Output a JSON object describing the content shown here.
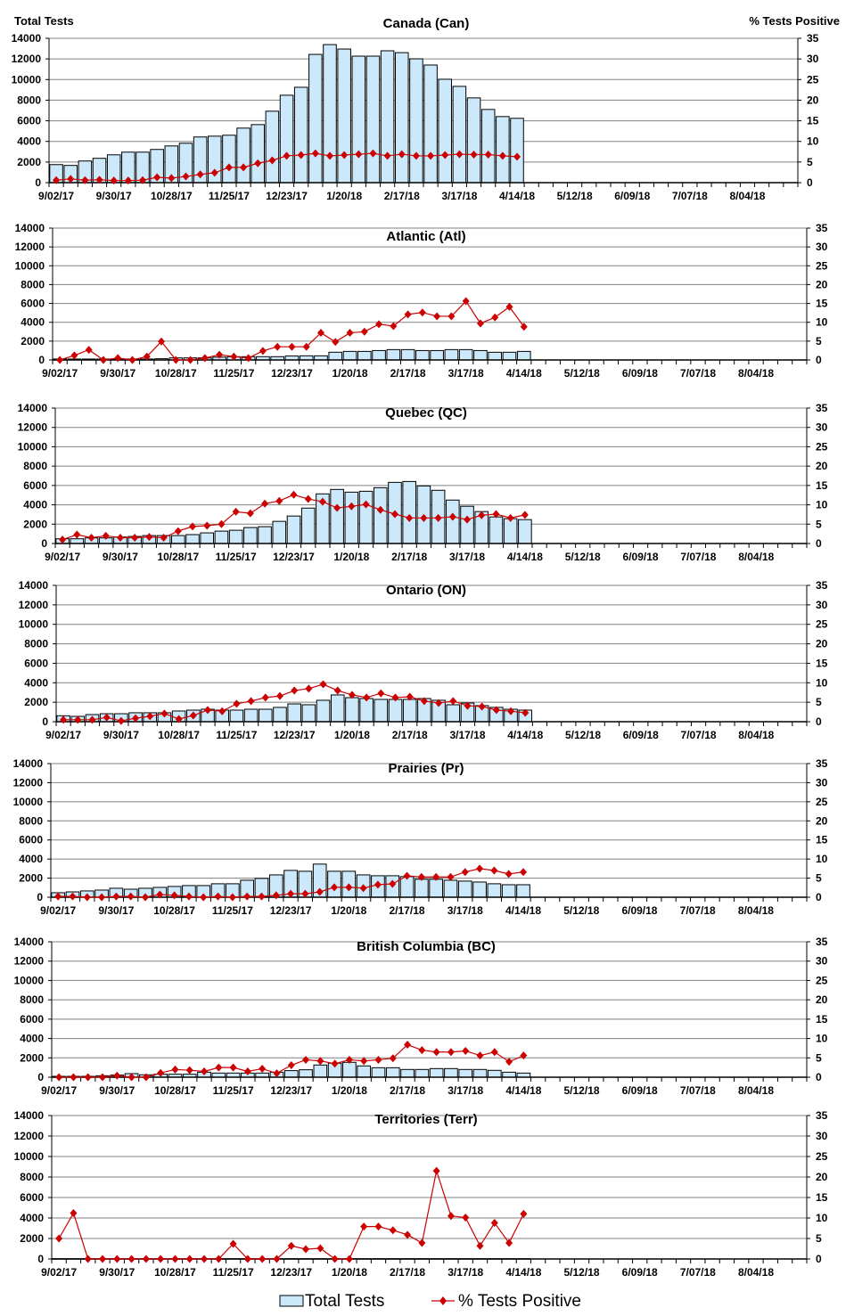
{
  "axis_titles": {
    "left": "Total Tests",
    "right": "% Tests Positive"
  },
  "legend": {
    "bars": "Total Tests",
    "line": "% Tests Positive"
  },
  "colors": {
    "bar_fill": "#cce9fb",
    "bar_stroke": "#000000",
    "line": "#cc0000",
    "grid": "#808080"
  },
  "chart_data": [
    {
      "type": "bar+line",
      "title": "Canada (Can)",
      "x_tick_labels": [
        "9/02/17",
        "9/30/17",
        "10/28/17",
        "11/25/17",
        "12/23/17",
        "1/20/18",
        "2/17/18",
        "3/17/18",
        "4/14/18",
        "5/12/18",
        "6/09/18",
        "7/07/18",
        "8/04/18"
      ],
      "y_left_ticks": [
        0,
        2000,
        4000,
        6000,
        8000,
        10000,
        12000,
        14000
      ],
      "y_right_ticks": [
        0,
        5,
        10,
        15,
        20,
        25,
        30,
        35
      ],
      "ylim_left": [
        0,
        14000
      ],
      "ylim_right": [
        0,
        35
      ],
      "grid": true,
      "series": [
        {
          "name": "Total Tests",
          "values": [
            1750,
            1670,
            2100,
            2360,
            2700,
            2960,
            2960,
            3220,
            3560,
            3820,
            4430,
            4510,
            4600,
            5290,
            5630,
            6930,
            8480,
            9250,
            12440,
            13390,
            12960,
            12270,
            12270,
            12790,
            12610,
            12010,
            11410,
            10030,
            9340,
            8220,
            7100,
            6410,
            6240
          ]
        },
        {
          "name": "% Tests Positive",
          "values": [
            0.6,
            0.9,
            0.6,
            0.7,
            0.5,
            0.5,
            0.6,
            1.3,
            1.1,
            1.5,
            2.0,
            2.4,
            3.7,
            3.7,
            4.7,
            5.4,
            6.5,
            6.7,
            7.1,
            6.5,
            6.7,
            6.9,
            7.1,
            6.5,
            6.9,
            6.5,
            6.5,
            6.7,
            6.9,
            6.8,
            6.8,
            6.5,
            6.3
          ]
        }
      ]
    },
    {
      "type": "bar+line",
      "title": "Atlantic (Atl)",
      "x_tick_labels": [
        "9/02/17",
        "9/30/17",
        "10/28/17",
        "11/25/17",
        "12/23/17",
        "1/20/18",
        "2/17/18",
        "3/17/18",
        "4/14/18",
        "5/12/18",
        "6/09/18",
        "7/07/18",
        "8/04/18"
      ],
      "y_left_ticks": [
        0,
        2000,
        4000,
        6000,
        8000,
        10000,
        12000,
        14000
      ],
      "y_right_ticks": [
        0,
        5,
        10,
        15,
        20,
        25,
        30,
        35
      ],
      "ylim_left": [
        0,
        14000
      ],
      "ylim_right": [
        0,
        35
      ],
      "grid": true,
      "series": [
        {
          "name": "Total Tests",
          "values": [
            100,
            100,
            100,
            100,
            100,
            100,
            100,
            130,
            220,
            220,
            220,
            300,
            350,
            350,
            350,
            350,
            420,
            440,
            440,
            820,
            910,
            910,
            1000,
            1100,
            1100,
            1000,
            1000,
            1100,
            1100,
            1000,
            820,
            820,
            910
          ]
        },
        {
          "name": "% Tests Positive",
          "values": [
            0,
            1.2,
            2.7,
            0,
            0.5,
            0,
            0.9,
            4.9,
            0,
            0,
            0.5,
            1.4,
            0.9,
            0.5,
            2.4,
            3.5,
            3.5,
            3.5,
            7.2,
            4.8,
            7.2,
            7.5,
            9.5,
            9.0,
            12.1,
            12.6,
            11.6,
            11.6,
            15.6,
            9.7,
            11.3,
            14.1,
            8.8
          ]
        }
      ]
    },
    {
      "type": "bar+line",
      "title": "Quebec (QC)",
      "x_tick_labels": [
        "9/02/17",
        "9/30/17",
        "10/28/17",
        "11/25/17",
        "12/23/17",
        "1/20/18",
        "2/17/18",
        "3/17/18",
        "4/14/18",
        "5/12/18",
        "6/09/18",
        "7/07/18",
        "8/04/18"
      ],
      "y_left_ticks": [
        0,
        2000,
        4000,
        6000,
        8000,
        10000,
        12000,
        14000
      ],
      "y_right_ticks": [
        0,
        5,
        10,
        15,
        20,
        25,
        30,
        35
      ],
      "ylim_left": [
        0,
        14000
      ],
      "ylim_right": [
        0,
        35
      ],
      "grid": true,
      "series": [
        {
          "name": "Total Tests",
          "values": [
            490,
            490,
            580,
            580,
            670,
            730,
            820,
            820,
            820,
            920,
            1100,
            1280,
            1370,
            1650,
            1740,
            2290,
            2840,
            3660,
            5130,
            5590,
            5310,
            5400,
            5770,
            6320,
            6410,
            5950,
            5500,
            4490,
            3850,
            3300,
            2750,
            2570,
            2470
          ]
        },
        {
          "name": "% Tests Positive",
          "values": [
            1.0,
            2.3,
            1.5,
            2.0,
            1.5,
            1.5,
            1.7,
            1.5,
            3.2,
            4.4,
            4.6,
            5.0,
            8.2,
            7.8,
            10.3,
            11.0,
            12.6,
            11.5,
            10.8,
            9.2,
            9.6,
            10.1,
            8.7,
            7.6,
            6.6,
            6.6,
            6.6,
            6.9,
            6.2,
            7.3,
            7.6,
            6.6,
            7.4
          ]
        }
      ]
    },
    {
      "type": "bar+line",
      "title": "Ontario (ON)",
      "x_tick_labels": [
        "9/02/17",
        "9/30/17",
        "10/28/17",
        "11/25/17",
        "12/23/17",
        "1/20/18",
        "2/17/18",
        "3/17/18",
        "4/14/18",
        "5/12/18",
        "6/09/18",
        "7/07/18",
        "8/04/18"
      ],
      "y_left_ticks": [
        0,
        2000,
        4000,
        6000,
        8000,
        10000,
        12000,
        14000
      ],
      "y_right_ticks": [
        0,
        5,
        10,
        15,
        20,
        25,
        30,
        35
      ],
      "ylim_left": [
        0,
        14000
      ],
      "ylim_right": [
        0,
        35
      ],
      "grid": true,
      "series": [
        {
          "name": "Total Tests",
          "values": [
            610,
            550,
            730,
            820,
            820,
            920,
            920,
            920,
            1100,
            1190,
            1280,
            1190,
            1190,
            1280,
            1280,
            1470,
            1830,
            1740,
            2200,
            2750,
            2470,
            2380,
            2290,
            2290,
            2290,
            2380,
            2200,
            1740,
            1920,
            1650,
            1470,
            1280,
            1190
          ]
        },
        {
          "name": "% Tests Positive",
          "values": [
            0.5,
            0.5,
            0.5,
            1.1,
            0.2,
            0.9,
            1.4,
            2.1,
            0.7,
            1.6,
            3.0,
            2.7,
            4.6,
            5.3,
            6.2,
            6.6,
            8.0,
            8.5,
            9.6,
            8.0,
            6.9,
            6.2,
            7.3,
            6.2,
            6.4,
            5.3,
            4.8,
            5.3,
            4.1,
            3.9,
            3.0,
            2.7,
            2.3
          ]
        }
      ]
    },
    {
      "type": "bar+line",
      "title": "Prairies (Pr)",
      "x_tick_labels": [
        "9/02/17",
        "9/30/17",
        "10/28/17",
        "11/25/17",
        "12/23/17",
        "1/20/18",
        "2/17/18",
        "3/17/18",
        "4/14/18",
        "5/12/18",
        "6/09/18",
        "7/07/18",
        "8/04/18"
      ],
      "y_left_ticks": [
        0,
        2000,
        4000,
        6000,
        8000,
        10000,
        12000,
        14000
      ],
      "y_right_ticks": [
        0,
        5,
        10,
        15,
        20,
        25,
        30,
        35
      ],
      "ylim_left": [
        0,
        14000
      ],
      "ylim_right": [
        0,
        35
      ],
      "grid": true,
      "series": [
        {
          "name": "Total Tests",
          "values": [
            470,
            560,
            660,
            750,
            940,
            840,
            940,
            1030,
            1130,
            1220,
            1220,
            1410,
            1410,
            1780,
            1970,
            2340,
            2810,
            2720,
            3470,
            2720,
            2720,
            2340,
            2250,
            2250,
            2160,
            1880,
            1880,
            1780,
            1690,
            1590,
            1410,
            1310,
            1310
          ]
        },
        {
          "name": "% Tests Positive",
          "values": [
            0.2,
            0.2,
            0,
            0,
            0.2,
            0.2,
            0,
            0.7,
            0.5,
            0.2,
            0,
            0.2,
            0,
            0.2,
            0.2,
            0.5,
            0.9,
            0.9,
            1.4,
            2.6,
            2.6,
            2.4,
            3.3,
            3.5,
            5.6,
            5.3,
            5.3,
            5.3,
            6.6,
            7.5,
            7.0,
            6.1,
            6.6
          ]
        }
      ]
    },
    {
      "type": "bar+line",
      "title": "British Columbia (BC)",
      "x_tick_labels": [
        "9/02/17",
        "9/30/17",
        "10/28/17",
        "11/25/17",
        "12/23/17",
        "1/20/18",
        "2/17/18",
        "3/17/18",
        "4/14/18",
        "5/12/18",
        "6/09/18",
        "7/07/18",
        "8/04/18"
      ],
      "y_left_ticks": [
        0,
        2000,
        4000,
        6000,
        8000,
        10000,
        12000,
        14000
      ],
      "y_right_ticks": [
        0,
        5,
        10,
        15,
        20,
        25,
        30,
        35
      ],
      "ylim_left": [
        0,
        14000
      ],
      "ylim_right": [
        0,
        35
      ],
      "grid": true,
      "series": [
        {
          "name": "Total Tests",
          "values": [
            90,
            90,
            90,
            150,
            220,
            370,
            250,
            310,
            310,
            310,
            520,
            430,
            430,
            430,
            430,
            520,
            680,
            770,
            1260,
            1450,
            1540,
            1170,
            980,
            980,
            800,
            800,
            890,
            890,
            800,
            800,
            710,
            520,
            430
          ]
        },
        {
          "name": "% Tests Positive",
          "values": [
            0,
            0,
            0,
            0,
            0.4,
            0,
            0,
            1.1,
            2.0,
            1.8,
            1.5,
            2.5,
            2.5,
            1.5,
            2.2,
            1.0,
            3.1,
            4.5,
            4.2,
            3.5,
            4.5,
            4.2,
            4.5,
            4.9,
            8.4,
            7.0,
            6.5,
            6.5,
            6.8,
            5.6,
            6.5,
            4.0,
            5.6
          ]
        }
      ]
    },
    {
      "type": "bar+line",
      "title": "Territories (Terr)",
      "x_tick_labels": [
        "9/02/17",
        "9/30/17",
        "10/28/17",
        "11/25/17",
        "12/23/17",
        "1/20/18",
        "2/17/18",
        "3/17/18",
        "4/14/18",
        "5/12/18",
        "6/09/18",
        "7/07/18",
        "8/04/18"
      ],
      "y_left_ticks": [
        0,
        2000,
        4000,
        6000,
        8000,
        10000,
        12000,
        14000
      ],
      "y_right_ticks": [
        0,
        5,
        10,
        15,
        20,
        25,
        30,
        35
      ],
      "ylim_left": [
        0,
        14000
      ],
      "ylim_right": [
        0,
        35
      ],
      "grid": true,
      "series": [
        {
          "name": "Total Tests",
          "values": [
            30,
            30,
            30,
            30,
            30,
            30,
            30,
            30,
            30,
            30,
            30,
            30,
            30,
            30,
            30,
            30,
            30,
            30,
            30,
            30,
            30,
            30,
            30,
            30,
            30,
            30,
            30,
            30,
            30,
            30,
            30,
            30,
            30
          ]
        },
        {
          "name": "% Tests Positive",
          "values": [
            5.0,
            11.2,
            0,
            0,
            0,
            0,
            0,
            0,
            0,
            0,
            0,
            0,
            3.7,
            0,
            0,
            0,
            3.2,
            2.4,
            2.6,
            0,
            0,
            7.9,
            7.9,
            7.0,
            5.9,
            3.9,
            21.5,
            10.5,
            10.1,
            3.2,
            8.8,
            3.9,
            11.0
          ]
        }
      ]
    }
  ]
}
